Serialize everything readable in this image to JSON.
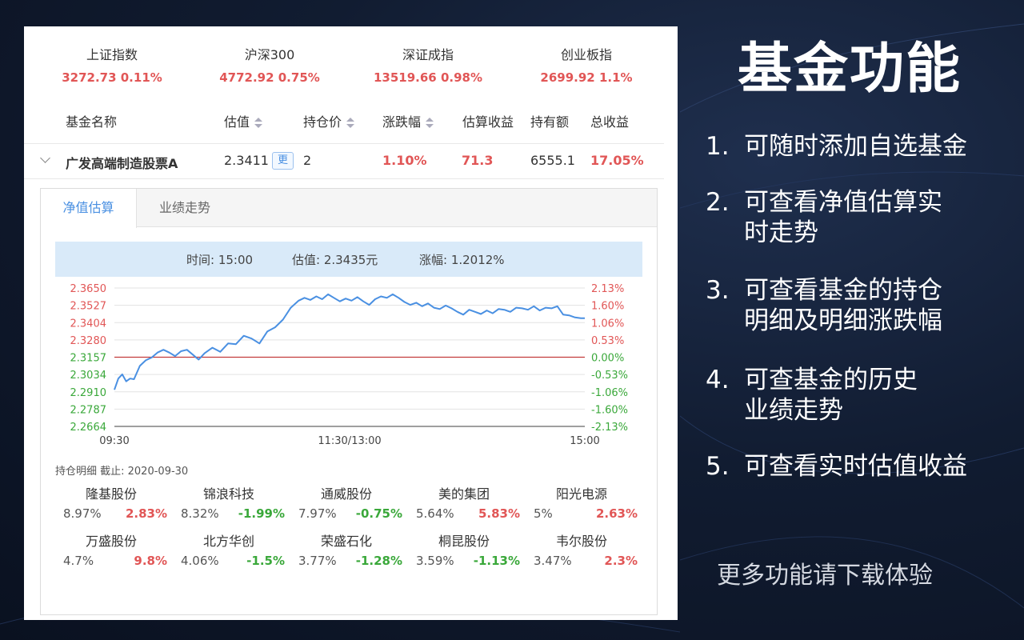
{
  "indices": [
    {
      "name": "上证指数",
      "value": "3272.73  0.11%"
    },
    {
      "name": "沪深300",
      "value": "4772.92  0.75%"
    },
    {
      "name": "深证成指",
      "value": "13519.66  0.98%"
    },
    {
      "name": "创业板指",
      "value": "2699.92  1.1%"
    }
  ],
  "table_headers": {
    "name": "基金名称",
    "estimate": "估值",
    "hold_price": "持仓价",
    "change": "涨跌幅",
    "est_profit": "估算收益",
    "holding": "持有额",
    "total_profit": "总收益"
  },
  "fund_row": {
    "name": "广发高端制造股票A",
    "estimate": "2.3411",
    "update_label": "更",
    "hold_price": "2",
    "change": "1.10%",
    "est_profit": "71.3",
    "holding": "6555.1",
    "total_profit": "17.05%"
  },
  "tabs": [
    "净值估算",
    "业绩走势"
  ],
  "info_bar": {
    "time": "时间: 15:00",
    "estimate": "估值: 2.3435元",
    "change": "涨幅: 1.2012%"
  },
  "chart_data": {
    "type": "line",
    "x_labels": [
      "09:30",
      "11:30/13:00",
      "15:00"
    ],
    "y_left_ticks": [
      "2.3650",
      "2.3527",
      "2.3404",
      "2.3280",
      "2.3157",
      "2.3034",
      "2.2910",
      "2.2787",
      "2.2664"
    ],
    "y_right_ticks": [
      "2.13%",
      "1.60%",
      "1.06%",
      "0.53%",
      "0.00%",
      "-0.53%",
      "-1.06%",
      "-1.60%",
      "-2.13%"
    ],
    "ylim": [
      2.2664,
      2.365
    ],
    "baseline": 2.3157,
    "x": [
      0,
      2,
      4,
      6,
      8,
      10,
      13,
      16,
      19,
      22,
      25,
      28,
      31,
      34,
      37,
      40,
      43,
      46,
      50,
      54,
      58,
      62,
      66,
      70,
      74,
      78,
      82,
      86,
      90,
      94,
      97,
      100,
      103,
      106,
      109,
      112,
      115,
      118,
      121,
      124,
      127,
      130,
      133,
      136,
      139,
      142,
      145,
      148,
      151,
      154,
      157,
      160,
      163,
      166,
      169,
      172,
      175,
      178,
      181,
      184,
      187,
      190,
      193,
      196,
      199,
      202,
      205,
      208,
      211,
      214,
      217,
      220,
      223,
      226,
      229,
      232,
      235,
      238,
      240
    ],
    "values": [
      2.2925,
      2.3005,
      2.3035,
      2.2985,
      2.3005,
      2.3,
      2.3095,
      2.3135,
      2.3155,
      2.319,
      2.321,
      2.319,
      2.3165,
      2.32,
      2.321,
      2.3175,
      2.314,
      2.3185,
      2.3225,
      2.3195,
      2.3255,
      2.325,
      2.331,
      2.329,
      2.3255,
      2.334,
      2.337,
      2.3425,
      2.351,
      2.356,
      2.358,
      2.3565,
      2.359,
      2.357,
      2.3605,
      2.358,
      2.3555,
      2.3575,
      2.356,
      2.3585,
      2.3555,
      2.353,
      2.357,
      2.359,
      2.358,
      2.3605,
      2.358,
      2.355,
      2.353,
      2.3545,
      2.352,
      2.354,
      2.351,
      2.35,
      2.3525,
      2.3505,
      2.348,
      2.346,
      2.3495,
      2.348,
      2.3465,
      2.349,
      2.347,
      2.35,
      2.3495,
      2.348,
      2.351,
      2.3505,
      2.3495,
      2.352,
      2.349,
      2.351,
      2.3505,
      2.352,
      2.346,
      2.3455,
      2.344,
      2.3435,
      2.3435
    ]
  },
  "holdings_title": "持仓明细 截止: 2020-09-30",
  "holdings": [
    {
      "name": "隆基股份",
      "pct": "8.97%",
      "change": "2.83%",
      "dir": "up"
    },
    {
      "name": "锦浪科技",
      "pct": "8.32%",
      "change": "-1.99%",
      "dir": "down"
    },
    {
      "name": "通威股份",
      "pct": "7.97%",
      "change": "-0.75%",
      "dir": "down"
    },
    {
      "name": "美的集团",
      "pct": "5.64%",
      "change": "5.83%",
      "dir": "up"
    },
    {
      "name": "阳光电源",
      "pct": "5%",
      "change": "2.63%",
      "dir": "up"
    },
    {
      "name": "万盛股份",
      "pct": "4.7%",
      "change": "9.8%",
      "dir": "up"
    },
    {
      "name": "北方华创",
      "pct": "4.06%",
      "change": "-1.5%",
      "dir": "down"
    },
    {
      "name": "荣盛石化",
      "pct": "3.77%",
      "change": "-1.28%",
      "dir": "down"
    },
    {
      "name": "桐昆股份",
      "pct": "3.59%",
      "change": "-1.13%",
      "dir": "down"
    },
    {
      "name": "韦尔股份",
      "pct": "3.47%",
      "change": "2.3%",
      "dir": "up"
    }
  ],
  "side": {
    "title": "基金功能",
    "features": [
      {
        "num": "1.",
        "line1": "可随时添加自选基金",
        "line2": ""
      },
      {
        "num": "2.",
        "line1": "可查看净值估算实",
        "line2": "时走势"
      },
      {
        "num": "3.",
        "line1": "可查看基金的持仓",
        "line2": "明细及明细涨跌幅"
      },
      {
        "num": "4.",
        "line1": "可查基金的历史",
        "line2": "业绩走势"
      },
      {
        "num": "5.",
        "line1": "可查看实时估值收益",
        "line2": ""
      }
    ],
    "footer": "更多功能请下载体验"
  },
  "colors": {
    "up": "#e15656",
    "down": "#3aa83a",
    "line": "#4a90e2",
    "accent": "#4a90e2"
  }
}
